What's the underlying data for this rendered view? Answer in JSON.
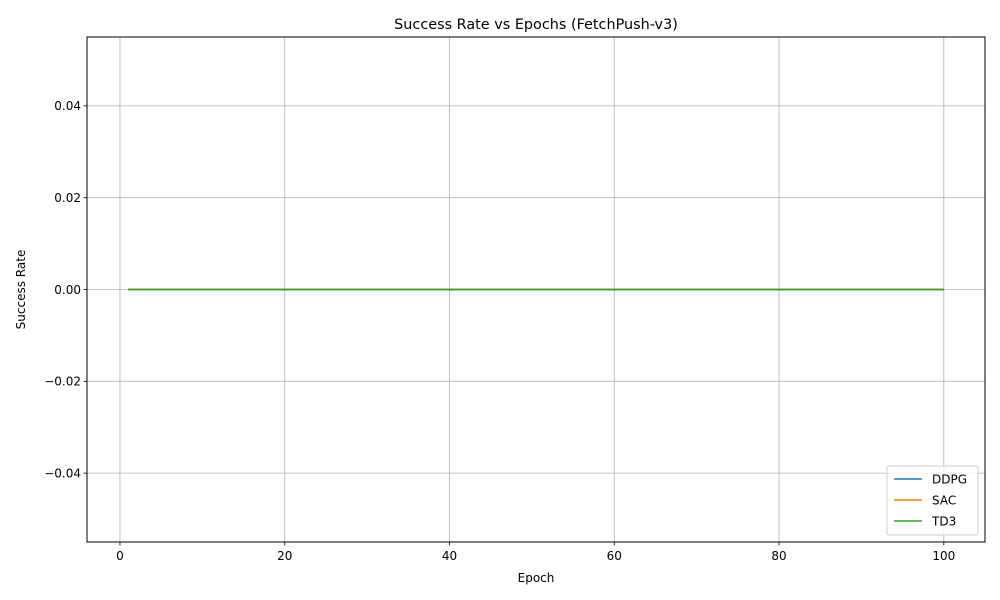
{
  "chart_data": {
    "type": "line",
    "title": "Success Rate vs Epochs (FetchPush-v3)",
    "xlabel": "Epoch",
    "ylabel": "Success Rate",
    "xlim": [
      -4,
      105
    ],
    "ylim": [
      -0.055,
      0.055
    ],
    "xticks": [
      0,
      20,
      40,
      60,
      80,
      100
    ],
    "xtick_labels": [
      "0",
      "20",
      "40",
      "60",
      "80",
      "100"
    ],
    "yticks": [
      -0.04,
      -0.02,
      0.0,
      0.02,
      0.04
    ],
    "ytick_labels": [
      "−0.04",
      "−0.02",
      "0.00",
      "0.02",
      "0.04"
    ],
    "grid": true,
    "legend_position": "lower-right",
    "x": [
      1,
      100
    ],
    "series": [
      {
        "name": "DDPG",
        "color": "#1f77b4",
        "values": [
          0.0,
          0.0
        ]
      },
      {
        "name": "SAC",
        "color": "#ff7f0e",
        "values": [
          0.0,
          0.0
        ]
      },
      {
        "name": "TD3",
        "color": "#2ca02c",
        "values": [
          0.0,
          0.0
        ]
      }
    ]
  }
}
